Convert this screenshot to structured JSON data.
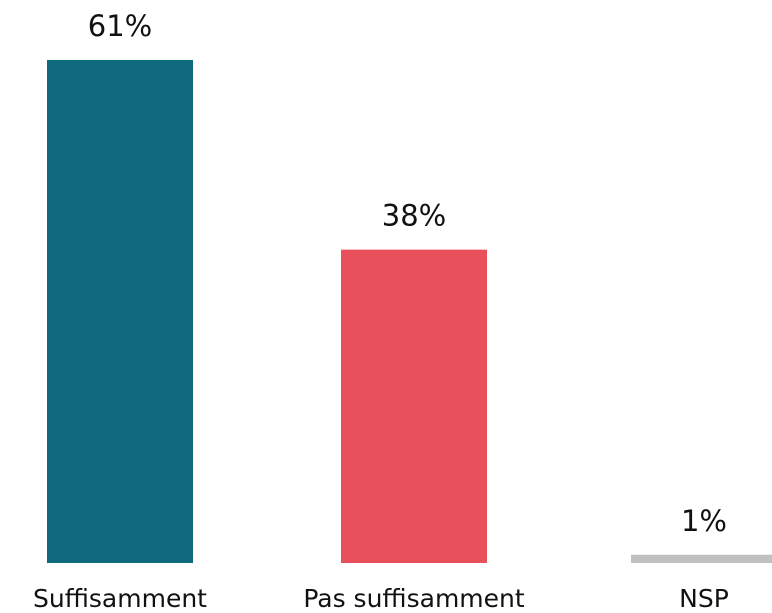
{
  "chart_data": {
    "type": "bar",
    "categories": [
      "Suffisamment",
      "Pas suffisamment",
      "NSP"
    ],
    "values": [
      61,
      38,
      1
    ],
    "value_labels": [
      "61%",
      "38%",
      "1%"
    ],
    "colors": [
      "#0f6a7e",
      "#e8505b",
      "#c0c0c0"
    ]
  }
}
